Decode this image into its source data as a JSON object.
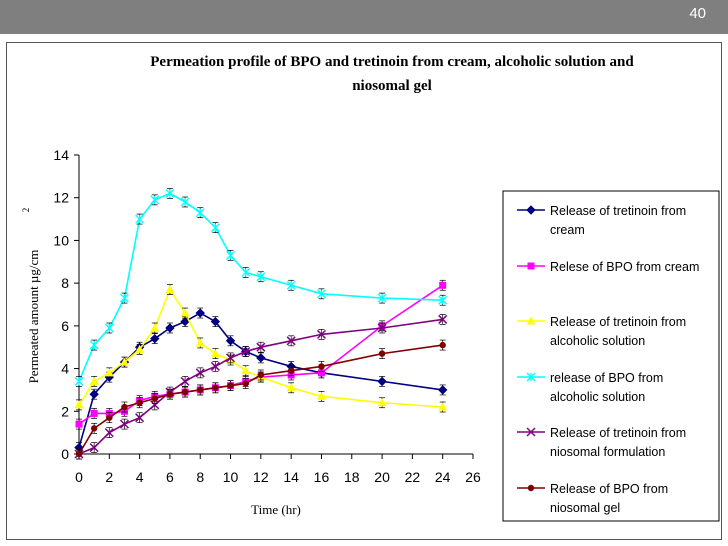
{
  "slide": {
    "number": "40"
  },
  "chart_data": {
    "type": "line",
    "title": "Permeation profile of BPO and tretinoin from cream, alcoholic solution and niosomal gel",
    "title_lines": [
      "Permeation profile of BPO and tretinoin from cream, alcoholic solution and",
      "niosomal gel"
    ],
    "xlabel": "Time (hr)",
    "ylabel": "Permeated amount  µg/cm",
    "ylabel_superscript": "2",
    "xlim": [
      0,
      26
    ],
    "ylim": [
      0,
      14
    ],
    "xticks": [
      "0",
      "2",
      "4",
      "6",
      "8",
      "10",
      "12",
      "14",
      "16",
      "18",
      "20",
      "22",
      "24",
      "26"
    ],
    "yticks": [
      "0",
      "2",
      "4",
      "6",
      "8",
      "10",
      "12",
      "14"
    ],
    "legend_position": "right",
    "series": [
      {
        "name": "Release of tretinoin from cream",
        "legend_lines": [
          "Release of tretinoin from",
          "cream"
        ],
        "color": "#000080",
        "marker": "diamond",
        "x": [
          0,
          1,
          2,
          3,
          4,
          5,
          6,
          7,
          8,
          9,
          10,
          11,
          12,
          14,
          16,
          20,
          24
        ],
        "y": [
          0.3,
          2.8,
          3.6,
          4.3,
          5.0,
          5.4,
          5.9,
          6.2,
          6.6,
          6.2,
          5.3,
          4.8,
          4.5,
          4.1,
          3.8,
          3.4,
          3.0
        ]
      },
      {
        "name": "Relese of BPO from cream",
        "legend_lines": [
          "Relese of BPO from cream"
        ],
        "color": "#ff00ff",
        "marker": "square",
        "x": [
          0,
          1,
          2,
          3,
          4,
          5,
          6,
          7,
          8,
          9,
          10,
          11,
          12,
          14,
          16,
          20,
          24
        ],
        "y": [
          1.4,
          1.9,
          1.9,
          2.0,
          2.5,
          2.7,
          2.8,
          2.9,
          3.0,
          3.1,
          3.2,
          3.4,
          3.6,
          3.7,
          3.8,
          6.0,
          7.9
        ]
      },
      {
        "name": "Release of tretinoin from alcoholic solution",
        "legend_lines": [
          "Release of tretinoin from",
          "alcoholic solution"
        ],
        "color": "#ffff00",
        "marker": "triangle",
        "x": [
          0,
          1,
          2,
          3,
          4,
          5,
          6,
          7,
          8,
          9,
          10,
          11,
          12,
          14,
          16,
          20,
          24
        ],
        "y": [
          2.3,
          3.4,
          3.8,
          4.3,
          4.9,
          5.9,
          7.7,
          6.6,
          5.2,
          4.7,
          4.4,
          3.9,
          3.6,
          3.1,
          2.7,
          2.4,
          2.2
        ]
      },
      {
        "name": "release of BPO from alcoholic solution",
        "legend_lines": [
          "release of BPO from",
          "alcoholic solution"
        ],
        "color": "#00ffff",
        "marker": "star",
        "x": [
          0,
          1,
          2,
          3,
          4,
          5,
          6,
          7,
          8,
          9,
          10,
          11,
          12,
          14,
          16,
          20,
          24
        ],
        "y": [
          3.4,
          5.1,
          5.9,
          7.3,
          11.0,
          11.9,
          12.2,
          11.8,
          11.3,
          10.6,
          9.3,
          8.5,
          8.3,
          7.9,
          7.5,
          7.3,
          7.2
        ]
      },
      {
        "name": "Release of tretinoin from niosomal formulation",
        "legend_lines": [
          "Release of tretinoin from",
          "niosomal formulation"
        ],
        "color": "#800080",
        "marker": "x",
        "x": [
          0,
          1,
          2,
          3,
          4,
          5,
          6,
          7,
          8,
          9,
          10,
          11,
          12,
          14,
          16,
          20,
          24
        ],
        "y": [
          0.0,
          0.3,
          1.0,
          1.4,
          1.7,
          2.3,
          2.9,
          3.4,
          3.8,
          4.1,
          4.5,
          4.8,
          5.0,
          5.3,
          5.6,
          5.9,
          6.3
        ]
      },
      {
        "name": "Release of BPO from niosomal gel",
        "legend_lines": [
          "Release of BPO from",
          "niosomal gel"
        ],
        "color": "#800000",
        "marker": "circle",
        "x": [
          0,
          1,
          2,
          3,
          4,
          5,
          6,
          7,
          8,
          9,
          10,
          11,
          12,
          14,
          16,
          20,
          24
        ],
        "y": [
          0.0,
          1.2,
          1.7,
          2.2,
          2.4,
          2.6,
          2.8,
          2.9,
          3.0,
          3.1,
          3.2,
          3.3,
          3.7,
          3.9,
          4.1,
          4.7,
          5.1
        ]
      }
    ]
  }
}
